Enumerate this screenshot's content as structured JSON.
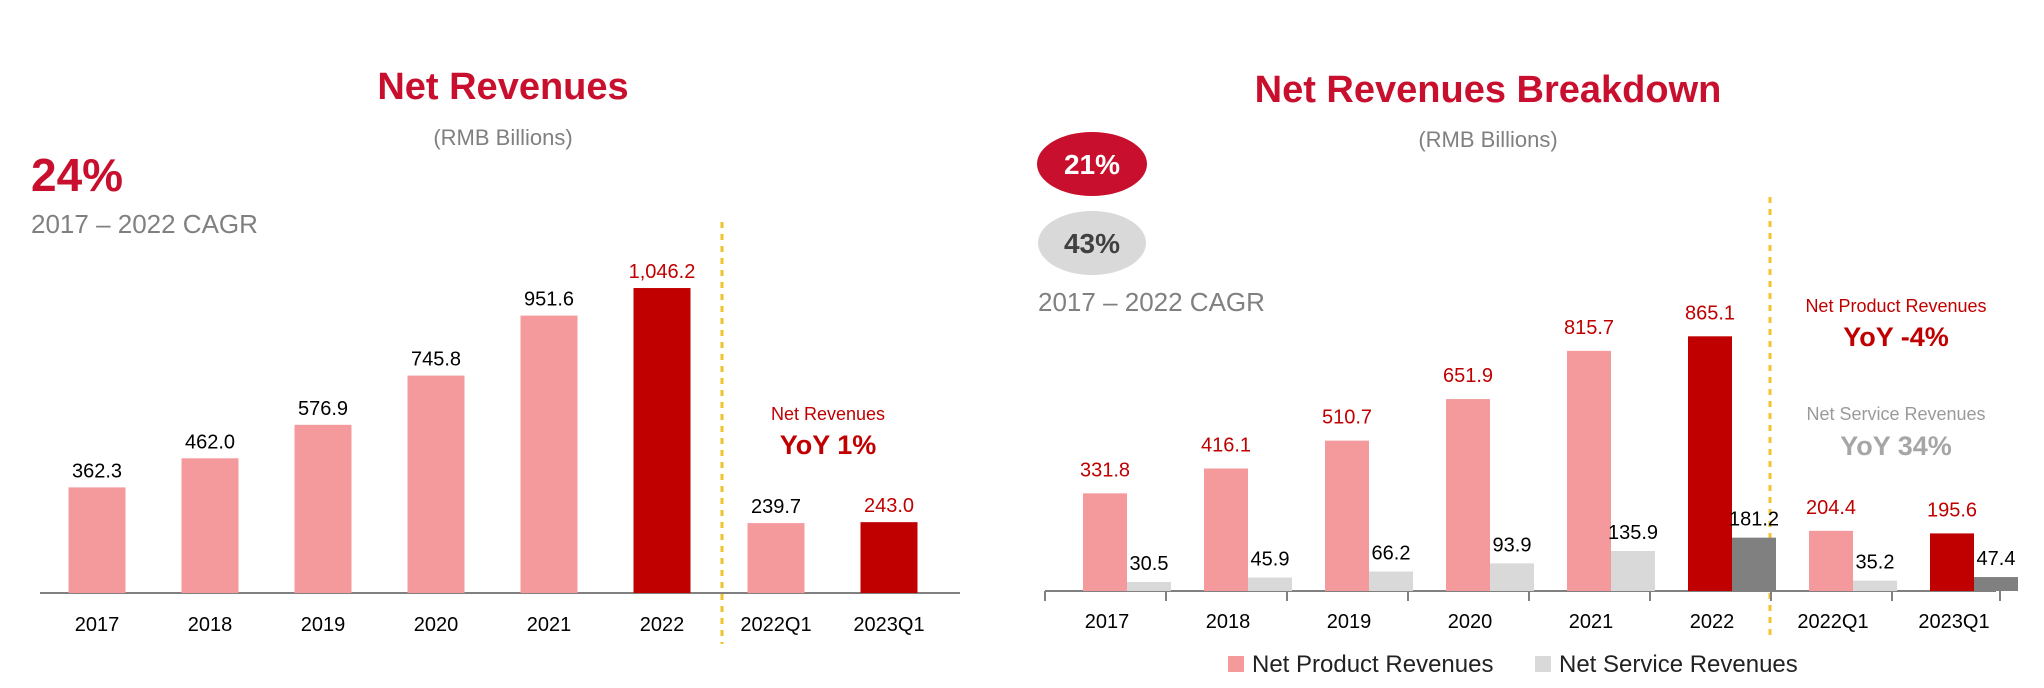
{
  "colors": {
    "light_red": "#f4999c",
    "dark_red": "#c00000",
    "light_grey": "#d9d9d9",
    "dark_grey": "#808080",
    "title_red": "#c8102e",
    "divider_gold": "#f2c12e"
  },
  "left": {
    "title": "Net Revenues",
    "subtitle": "(RMB Billions)",
    "cagr_value": "24%",
    "cagr_label": "2017 – 2022 CAGR",
    "yoy_label": "Net Revenues",
    "yoy_value": "YoY 1%"
  },
  "right": {
    "title": "Net Revenues Breakdown",
    "subtitle": "(RMB Billions)",
    "cagr_product": "21%",
    "cagr_service": "43%",
    "cagr_label": "2017 – 2022 CAGR",
    "yoy_product_label": "Net Product Revenues",
    "yoy_product_value": "YoY -4%",
    "yoy_service_label": "Net Service Revenues",
    "yoy_service_value": "YoY 34%",
    "legend_product": "Net Product Revenues",
    "legend_service": "Net Service Revenues"
  },
  "chart_data": [
    {
      "type": "bar",
      "title": "Net Revenues",
      "subtitle": "(RMB Billions)",
      "categories": [
        "2017",
        "2018",
        "2019",
        "2020",
        "2021",
        "2022",
        "2022Q1",
        "2023Q1"
      ],
      "values": [
        362.3,
        462.0,
        576.9,
        745.8,
        951.6,
        1046.2,
        239.7,
        243.0
      ],
      "labels": [
        "362.3",
        "462.0",
        "576.9",
        "745.8",
        "951.6",
        "1,046.2",
        "239.7",
        "243.0"
      ],
      "highlight": [
        "2022",
        "2023Q1"
      ]
    },
    {
      "type": "bar",
      "title": "Net Revenues Breakdown",
      "subtitle": "(RMB Billions)",
      "categories": [
        "2017",
        "2018",
        "2019",
        "2020",
        "2021",
        "2022",
        "2022Q1",
        "2023Q1"
      ],
      "series": [
        {
          "name": "Net Product Revenues",
          "values": [
            331.8,
            416.1,
            510.7,
            651.9,
            815.7,
            865.1,
            204.4,
            195.6
          ],
          "labels": [
            "331.8",
            "416.1",
            "510.7",
            "651.9",
            "815.7",
            "865.1",
            "204.4",
            "195.6"
          ]
        },
        {
          "name": "Net Service Revenues",
          "values": [
            30.5,
            45.9,
            66.2,
            93.9,
            135.9,
            181.2,
            35.2,
            47.4
          ],
          "labels": [
            "30.5",
            "45.9",
            "66.2",
            "93.9",
            "135.9",
            "181.2",
            "35.2",
            "47.4"
          ]
        }
      ],
      "highlight": [
        "2022",
        "2023Q1"
      ],
      "legend": "bottom"
    }
  ]
}
